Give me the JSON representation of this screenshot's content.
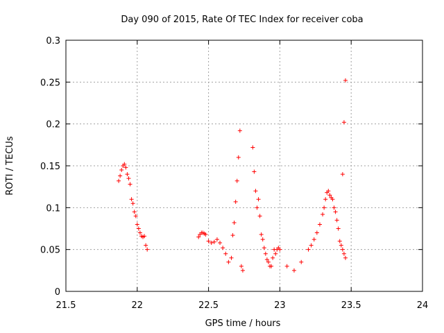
{
  "chart_data": {
    "type": "scatter",
    "title": "Day 090 of 2015, Rate Of TEC Index for receiver coba",
    "xlabel": "GPS time / hours",
    "ylabel": "ROTI / TECUs",
    "xlim": [
      21.5,
      24
    ],
    "ylim": [
      0,
      0.3
    ],
    "x_ticks": [
      21.5,
      22,
      22.5,
      23,
      23.5,
      24
    ],
    "x_tick_labels": [
      "21.5",
      "22",
      "22.5",
      "23",
      "23.5",
      "24"
    ],
    "y_ticks": [
      0,
      0.05,
      0.1,
      0.15,
      0.2,
      0.25,
      0.3
    ],
    "y_tick_labels": [
      "0",
      "0.05",
      "0.1",
      "0.15",
      "0.2",
      "0.25",
      "0.3"
    ],
    "grid": true,
    "marker": "+",
    "marker_color": "#ff0000",
    "series": [
      {
        "name": "ROTI",
        "x": [
          21.87,
          21.88,
          21.89,
          21.9,
          21.91,
          21.92,
          21.93,
          21.94,
          21.95,
          21.96,
          21.97,
          21.98,
          21.99,
          22.0,
          22.01,
          22.02,
          22.03,
          22.04,
          22.05,
          22.06,
          22.07,
          22.43,
          22.44,
          22.45,
          22.46,
          22.47,
          22.48,
          22.5,
          22.52,
          22.54,
          22.56,
          22.58,
          22.6,
          22.62,
          22.64,
          22.66,
          22.67,
          22.68,
          22.69,
          22.7,
          22.71,
          22.72,
          22.73,
          22.74,
          22.81,
          22.82,
          22.83,
          22.84,
          22.85,
          22.86,
          22.87,
          22.88,
          22.89,
          22.9,
          22.91,
          22.92,
          22.93,
          22.94,
          22.95,
          22.96,
          22.97,
          22.98,
          22.99,
          23.0,
          23.05,
          23.1,
          23.15,
          23.2,
          23.22,
          23.24,
          23.26,
          23.28,
          23.3,
          23.31,
          23.32,
          23.33,
          23.34,
          23.35,
          23.36,
          23.37,
          23.38,
          23.39,
          23.4,
          23.41,
          23.42,
          23.43,
          23.44,
          23.45,
          23.46,
          23.44,
          23.45,
          23.46
        ],
        "y": [
          0.132,
          0.138,
          0.145,
          0.15,
          0.152,
          0.148,
          0.14,
          0.135,
          0.128,
          0.11,
          0.105,
          0.095,
          0.09,
          0.08,
          0.075,
          0.07,
          0.066,
          0.065,
          0.066,
          0.055,
          0.05,
          0.065,
          0.068,
          0.07,
          0.07,
          0.069,
          0.068,
          0.06,
          0.058,
          0.059,
          0.062,
          0.058,
          0.052,
          0.045,
          0.035,
          0.04,
          0.067,
          0.082,
          0.107,
          0.132,
          0.16,
          0.192,
          0.03,
          0.025,
          0.172,
          0.143,
          0.12,
          0.1,
          0.11,
          0.09,
          0.068,
          0.062,
          0.052,
          0.045,
          0.038,
          0.035,
          0.03,
          0.03,
          0.04,
          0.05,
          0.045,
          0.05,
          0.052,
          0.05,
          0.03,
          0.025,
          0.035,
          0.05,
          0.055,
          0.062,
          0.07,
          0.08,
          0.092,
          0.1,
          0.11,
          0.118,
          0.12,
          0.115,
          0.112,
          0.11,
          0.1,
          0.095,
          0.085,
          0.075,
          0.06,
          0.055,
          0.05,
          0.045,
          0.04,
          0.14,
          0.202,
          0.252
        ]
      }
    ]
  }
}
